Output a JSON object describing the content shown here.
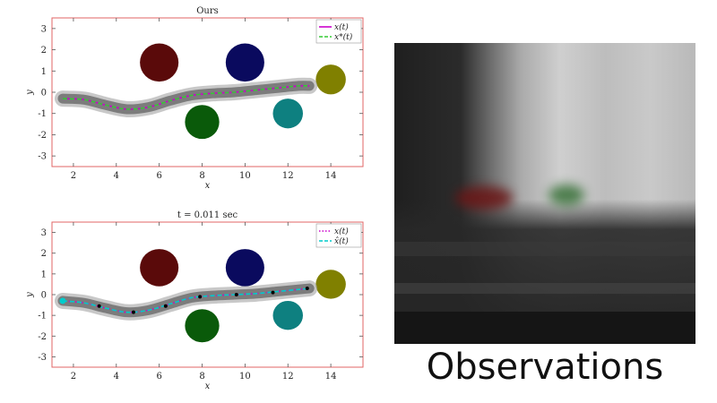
{
  "colors": {
    "frame": "#e06666",
    "tube": "#6e6e6e",
    "xt": "#cc00cc",
    "xstar": "#33cc33",
    "xhat": "#00cccc",
    "obstacle_red": "#5a0a0a",
    "obstacle_navy": "#0a0a5e",
    "obstacle_green": "#0a5a0a",
    "obstacle_teal": "#0e8080",
    "obstacle_olive": "#808000"
  },
  "chart_data": [
    {
      "type": "line",
      "title": "Ours",
      "xlabel": "x",
      "ylabel": "y",
      "xlim": [
        1,
        15.5
      ],
      "ylim": [
        -3.5,
        3.5
      ],
      "xticks": [
        "2",
        "4",
        "6",
        "8",
        "10",
        "12",
        "14"
      ],
      "yticks": [
        "3",
        "2",
        "1",
        "0",
        "-1",
        "-2",
        "-3"
      ],
      "legend": {
        "position": "top-right",
        "entries": [
          "x(t)",
          "x*(t)"
        ]
      },
      "obstacles": [
        {
          "cx": 6.0,
          "cy": 1.4,
          "r": 0.9,
          "color": "obstacle_red"
        },
        {
          "cx": 10.0,
          "cy": 1.4,
          "r": 0.9,
          "color": "obstacle_navy"
        },
        {
          "cx": 8.0,
          "cy": -1.4,
          "r": 0.8,
          "color": "obstacle_green"
        },
        {
          "cx": 12.0,
          "cy": -1.0,
          "r": 0.7,
          "color": "obstacle_teal"
        },
        {
          "cx": 14.0,
          "cy": 0.6,
          "r": 0.7,
          "color": "obstacle_olive"
        }
      ],
      "series": [
        {
          "name": "x(t)",
          "style": "solid",
          "color": "xt",
          "x": [
            1.5,
            2.5,
            3.5,
            4.5,
            5.5,
            6.5,
            7.5,
            8.5,
            9.5,
            10.5,
            11.5,
            12.5,
            13.0
          ],
          "y": [
            -0.3,
            -0.35,
            -0.6,
            -0.8,
            -0.7,
            -0.4,
            -0.15,
            -0.05,
            0.0,
            0.1,
            0.2,
            0.3,
            0.3
          ]
        },
        {
          "name": "x*(t)",
          "style": "dashed",
          "color": "xstar",
          "x": [
            1.5,
            2.5,
            3.5,
            4.5,
            5.5,
            6.5,
            7.5,
            8.5,
            9.5,
            10.5,
            11.5,
            12.5,
            13.0
          ],
          "y": [
            -0.3,
            -0.35,
            -0.6,
            -0.8,
            -0.7,
            -0.4,
            -0.15,
            -0.05,
            0.0,
            0.1,
            0.2,
            0.3,
            0.3
          ]
        }
      ]
    },
    {
      "type": "line",
      "title": "t = 0.011 sec",
      "xlabel": "x",
      "ylabel": "y",
      "xlim": [
        1,
        15.5
      ],
      "ylim": [
        -3.5,
        3.5
      ],
      "xticks": [
        "2",
        "4",
        "6",
        "8",
        "10",
        "12",
        "14"
      ],
      "yticks": [
        "3",
        "2",
        "1",
        "0",
        "-1",
        "-2",
        "-3"
      ],
      "legend": {
        "position": "top-right",
        "entries": [
          "x(t)",
          "x̂(t)"
        ]
      },
      "obstacles": [
        {
          "cx": 6.0,
          "cy": 1.3,
          "r": 0.9,
          "color": "obstacle_red"
        },
        {
          "cx": 10.0,
          "cy": 1.3,
          "r": 0.9,
          "color": "obstacle_navy"
        },
        {
          "cx": 8.0,
          "cy": -1.5,
          "r": 0.8,
          "color": "obstacle_green"
        },
        {
          "cx": 12.0,
          "cy": -1.0,
          "r": 0.7,
          "color": "obstacle_teal"
        },
        {
          "cx": 14.0,
          "cy": 0.5,
          "r": 0.7,
          "color": "obstacle_olive"
        }
      ],
      "series": [
        {
          "name": "x(t)",
          "style": "dotted",
          "color": "xt",
          "x": [
            1.5,
            2.5,
            3.5,
            4.5,
            5.5,
            6.5,
            7.5,
            8.5,
            9.5,
            10.5,
            11.5,
            12.5,
            13.0
          ],
          "y": [
            -0.3,
            -0.4,
            -0.65,
            -0.85,
            -0.75,
            -0.45,
            -0.15,
            -0.05,
            0.0,
            0.05,
            0.15,
            0.25,
            0.3
          ]
        },
        {
          "name": "x̂(t)",
          "style": "dashed",
          "color": "xhat",
          "x": [
            1.5,
            2.5,
            3.5,
            4.5,
            5.5,
            6.5,
            7.5,
            8.5,
            9.5,
            10.5,
            11.5,
            12.5,
            13.0
          ],
          "y": [
            -0.3,
            -0.4,
            -0.65,
            -0.85,
            -0.75,
            -0.45,
            -0.15,
            -0.05,
            0.0,
            0.05,
            0.15,
            0.25,
            0.3
          ]
        }
      ],
      "markers": {
        "x": [
          3.2,
          4.8,
          6.3,
          7.9,
          9.6,
          11.3,
          12.9
        ],
        "y": [
          -0.55,
          -0.85,
          -0.55,
          -0.1,
          0.0,
          0.1,
          0.3
        ]
      },
      "start_marker": {
        "x": 1.5,
        "y": -0.3
      }
    }
  ],
  "observations": {
    "label": "Observations"
  }
}
